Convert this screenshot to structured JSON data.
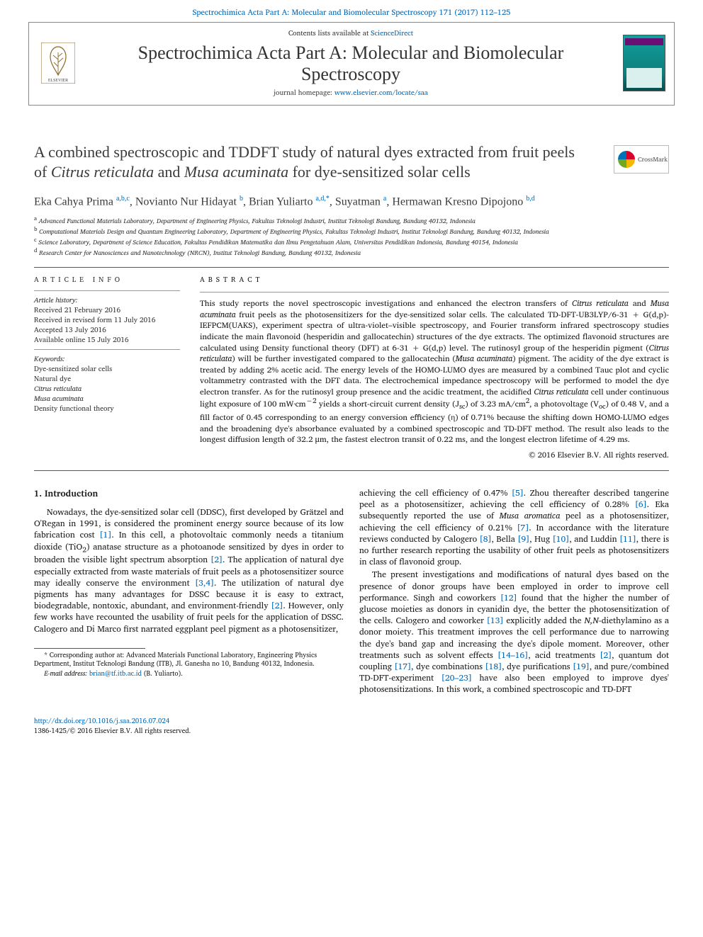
{
  "top_link": "Spectrochimica Acta Part A: Molecular and Biomolecular Spectroscopy 171 (2017) 112–125",
  "contents_line_pre": "Contents lists available at ",
  "contents_line_link": "ScienceDirect",
  "journal_title": "Spectrochimica Acta Part A: Molecular and Biomolecular Spectroscopy",
  "journal_homepage_pre": "journal homepage: ",
  "journal_homepage_link": "www.elsevier.com/locate/saa",
  "crossmark_label": "CrossMark",
  "article_title_html": "A combined spectroscopic and TDDFT study of natural dyes extracted from fruit peels of <em>Citrus reticulata</em> and <em>Musa acuminata</em> for dye-sensitized solar cells",
  "authors_html": "Eka Cahya Prima <sup>a,b,c</sup>, Novianto Nur Hidayat <sup>b</sup>, Brian Yuliarto <sup>a,d,*</sup>, Suyatman <sup>a</sup>, Hermawan Kresno Dipojono <sup>b,d</sup>",
  "affils": {
    "a": "Advanced Functional Materials Laboratory, Department of Engineering Physics, Fakultas Teknologi Industri, Institut Teknologi Bandung, Bandung 40132, Indonesia",
    "b": "Computational Materials Design and Quantum Engineering Laboratory, Department of Engineering Physics, Fakultas Teknologi Industri, Institut Teknologi Bandung, Bandung 40132, Indonesia",
    "c": "Science Laboratory, Department of Science Education, Fakultas Pendidikan Matematika dan Ilmu Pengetahuan Alam, Universitas Pendidikan Indonesia, Bandung 40154, Indonesia",
    "d": "Research Center for Nanosciences and Nanotechnology (NRCN), Institut Teknologi Bandung, Bandung 40132, Indonesia"
  },
  "article_info_label": "ARTICLE INFO",
  "abstract_label": "ABSTRACT",
  "article_history_label": "Article history:",
  "history_lines": [
    "Received 21 February 2016",
    "Received in revised form 11 July 2016",
    "Accepted 13 July 2016",
    "Available online 15 July 2016"
  ],
  "keywords_label": "Keywords:",
  "keywords": [
    "Dye-sensitized solar cells",
    "Natural dye",
    "Citrus reticulata",
    "Musa acuminata",
    "Density functional theory"
  ],
  "abstract_html": "This study reports the novel spectroscopic investigations and enhanced the electron transfers of <em>Citrus reticulata</em> and <em>Musa acuminata</em> fruit peels as the photosensitizers for the dye-sensitized solar cells. The calculated TD-DFT-UB3LYP/6-31 + G(d,p)-IEFPCM(UAKS), experiment spectra of ultra-violet–visible spectroscopy, and Fourier transform infrared spectroscopy studies indicate the main flavonoid (hesperidin and gallocatechin) structures of the dye extracts. The optimized flavonoid structures are calculated using Density functional theory (DFT) at 6-31 + G(d,p) level. The rutinosyl group of the hesperidin pigment (<em>Citrus reticulata</em>) will be further investigated compared to the gallocatechin (<em>Musa acuminata</em>) pigment. The acidity of the dye extract is treated by adding 2% acetic acid. The energy levels of the HOMO-LUMO dyes are measured by a combined Tauc plot and cyclic voltammetry contrasted with the DFT data. The electrochemical impedance spectroscopy will be performed to model the dye electron transfer. As for the rutinosyl group presence and the acidic treatment, the acidified <em>Citrus reticulata</em> cell under continuous light exposure of 100 mW·cm<sup>−2</sup> yields a short-circuit current density (J<sub>sc</sub>) of 3.23 mA/cm<sup>2</sup>, a photovoltage (V<sub>oc</sub>) of 0.48 V, and a fill factor of 0.45 corresponding to an energy conversion efficiency (η) of 0.71% because the shifting down HOMO-LUMO edges and the broadening dye's absorbance evaluated by a combined spectroscopic and TD-DFT method. The result also leads to the longest diffusion length of 32.2 μm, the fastest electron transit of 0.22 ms, and the longest electron lifetime of 4.29 ms.",
  "copyright": "© 2016 Elsevier B.V. All rights reserved.",
  "intro_heading": "1. Introduction",
  "col1_html": "Nowadays, the dye-sensitized solar cell (DDSC), first developed by Grätzel and O'Regan in 1991, is considered the prominent energy source because of its low fabrication cost <a class='cite' href='#'>[1]</a>. In this cell, a photovoltaic commonly needs a titanium dioxide (TiO<sub>2</sub>) anatase structure as a photoanode sensitized by dyes in order to broaden the visible light spectrum absorption <a class='cite' href='#'>[2]</a>. The application of natural dye especially extracted from waste materials of fruit peels as a photosensitizer source may ideally conserve the environment <a class='cite' href='#'>[3,4]</a>. The utilization of natural dye pigments has many advantages for DSSC because it is easy to extract, biodegradable, nontoxic, abundant, and environment-friendly <a class='cite' href='#'>[2]</a>. However, only few works have recounted the usability of fruit peels for the application of DSSC. Calogero and Di Marco first narrated eggplant peel pigment as a photosensitizer,",
  "col2_html_p1": "achieving the cell efficiency of 0.47% <a class='cite' href='#'>[5]</a>. Zhou thereafter described tangerine peel as a photosensitizer, achieving the cell efficiency of 0.28% <a class='cite' href='#'>[6]</a>. Eka subsequently reported the use of <em>Musa aromatica</em> peel as a photosensitizer, achieving the cell efficiency of 0.21% <a class='cite' href='#'>[7]</a>. In accordance with the literature reviews conducted by Calogero <a class='cite' href='#'>[8]</a>, Bella <a class='cite' href='#'>[9]</a>, Hug <a class='cite' href='#'>[10]</a>, and Luddin <a class='cite' href='#'>[11]</a>, there is no further research reporting the usability of other fruit peels as photosensitizers in class of flavonoid group.",
  "col2_html_p2": "The present investigations and modifications of natural dyes based on the presence of donor groups have been employed in order to improve cell performance. Singh and coworkers <a class='cite' href='#'>[12]</a> found that the higher the number of glucose moieties as donors in cyanidin dye, the better the photosensitization of the cells. Calogero and coworker <a class='cite' href='#'>[13]</a> explicitly added the <em>N,N</em>-diethylamino as a donor moiety. This treatment improves the cell performance due to narrowing the dye's band gap and increasing the dye's dipole moment. Moreover, other treatments such as solvent effects <a class='cite' href='#'>[14–16]</a>, acid treatments <a class='cite' href='#'>[2]</a>, quantum dot coupling <a class='cite' href='#'>[17]</a>, dye combinations <a class='cite' href='#'>[18]</a>, dye purifications <a class='cite' href='#'>[19]</a>, and pure/combined TD-DFT-experiment <a class='cite' href='#'>[20–23]</a> have also been employed to improve dyes' photosensitizations. In this work, a combined spectroscopic and TD-DFT",
  "footnote_corr": "* Corresponding author at: Advanced Materials Functional Laboratory, Engineering Physics Department, Institut Teknologi Bandung (ITB), Jl. Ganesha no 10, Bandung 40132, Indonesia.",
  "footnote_email_label": "E-mail address:",
  "footnote_email": "brian@tf.itb.ac.id",
  "footnote_email_who": "(B. Yuliarto).",
  "doi": "http://dx.doi.org/10.1016/j.saa.2016.07.024",
  "issn_line": "1386-1425/© 2016 Elsevier B.V. All rights reserved.",
  "colors": {
    "link": "#0066b3",
    "text": "#1a1a1a",
    "title": "#3a3a3a",
    "rule": "#555555",
    "background": "#ffffff"
  }
}
